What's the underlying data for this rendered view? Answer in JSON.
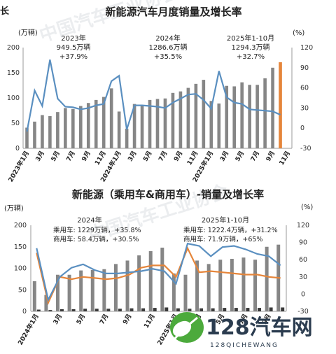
{
  "chart_data": [
    {
      "type": "bar",
      "title": "新能源汽车月度销量及增长率",
      "left_unit_partial": "长",
      "yunit_left": "(万辆)",
      "yunit_right": "(%)",
      "yticks_left": [
        "0",
        "50",
        "100",
        "150",
        "200"
      ],
      "yticks_right": [
        "-30",
        "0",
        "30",
        "60",
        "90",
        "120"
      ],
      "ylim_left": [
        0,
        200
      ],
      "ylim_right": [
        -30,
        120
      ],
      "xtick_labels": [
        "2023年1月",
        "3月",
        "5月",
        "7月",
        "9月",
        "11月",
        "2024年1月",
        "3月",
        "5月",
        "7月",
        "9月",
        "11月",
        "2025年1月",
        "3月",
        "5月",
        "7月",
        "9月",
        "11月"
      ],
      "annotations": [
        {
          "year": "2023年",
          "total": "949.5万辆",
          "growth": "+37.9%"
        },
        {
          "year": "2024年",
          "total": "1286.6万辆",
          "growth": "+35.5%"
        },
        {
          "year": "2025年1-10月",
          "total": "1294.3万辆",
          "growth": "+32.7%"
        }
      ],
      "months": 35,
      "bar_values": [
        41,
        53,
        66,
        64,
        72,
        80,
        78,
        84,
        90,
        96,
        102,
        119,
        73,
        39,
        88,
        85,
        96,
        98,
        99,
        110,
        113,
        120,
        128,
        136,
        94,
        89,
        124,
        123,
        131,
        126,
        126,
        139,
        160,
        171,
        null
      ],
      "highlight_index": 33,
      "growth_values": [
        -5,
        56,
        33,
        102,
        44,
        32,
        31,
        28,
        30,
        34,
        36,
        70,
        78,
        -2,
        34,
        34,
        33,
        32,
        30,
        38,
        44,
        50,
        51,
        42,
        29,
        85,
        46,
        38,
        36,
        28,
        27,
        26,
        25,
        20,
        null
      ],
      "colors": {
        "bars": "#868686",
        "highlight": "#e5853a",
        "line": "#5a8fc0"
      }
    },
    {
      "type": "bar",
      "title": "新能源（乘用车&商用车）-销量及增长率",
      "yunit_left": "(万辆)",
      "yunit_right": "(%)",
      "yticks_left": [
        "0",
        "50",
        "100",
        "150",
        "200"
      ],
      "yticks_right": [
        "-30",
        "0",
        "30",
        "60",
        "90",
        "120"
      ],
      "ylim_left": [
        0,
        200
      ],
      "ylim_right": [
        -30,
        120
      ],
      "xtick_labels": [
        "2024年1月",
        "3月",
        "5月",
        "7月",
        "9月",
        "11月",
        "2025年1月",
        "3月",
        "5月",
        "7月",
        "9月"
      ],
      "annotations": {
        "y2024": {
          "year": "2024年",
          "passenger": "乘用车: 1229万辆，+35.8%",
          "commercial": "商用车: 58.4万辆，+30.5%"
        },
        "y2025": {
          "year": "2025年1-10月",
          "passenger": "乘用车: 1222.4万辆，+31.2%",
          "commercial": "商用车: 71.9万辆，+65%"
        }
      },
      "months": 22,
      "passenger_values": [
        70,
        38,
        85,
        85,
        95,
        96,
        98,
        110,
        118,
        130,
        140,
        148,
        88,
        85,
        118,
        110,
        120,
        122,
        125,
        120,
        150,
        155
      ],
      "commercial_values": [
        4,
        3,
        5,
        5,
        6,
        6,
        6,
        6,
        7,
        7,
        8,
        9,
        7,
        6,
        7,
        7,
        8,
        8,
        8,
        8,
        9,
        9
      ],
      "passenger_growth": [
        80,
        -10,
        30,
        46,
        52,
        42,
        36,
        36,
        38,
        40,
        44,
        40,
        18,
        88,
        84,
        66,
        82,
        84,
        78,
        70,
        66,
        50
      ],
      "commercial_growth": [
        72,
        -15,
        30,
        26,
        30,
        28,
        26,
        28,
        34,
        46,
        50,
        50,
        30,
        80,
        38,
        40,
        38,
        36,
        34,
        34,
        30,
        28
      ],
      "colors": {
        "passenger": "#868686",
        "commercial": "#3a3a3a",
        "passenger_line": "#5a8fc0",
        "commercial_line": "#e5853a"
      }
    }
  ],
  "watermark": {
    "brand": "128汽车网",
    "sub": "128QICHEWANG",
    "overlay": "中国汽车工业协会"
  }
}
